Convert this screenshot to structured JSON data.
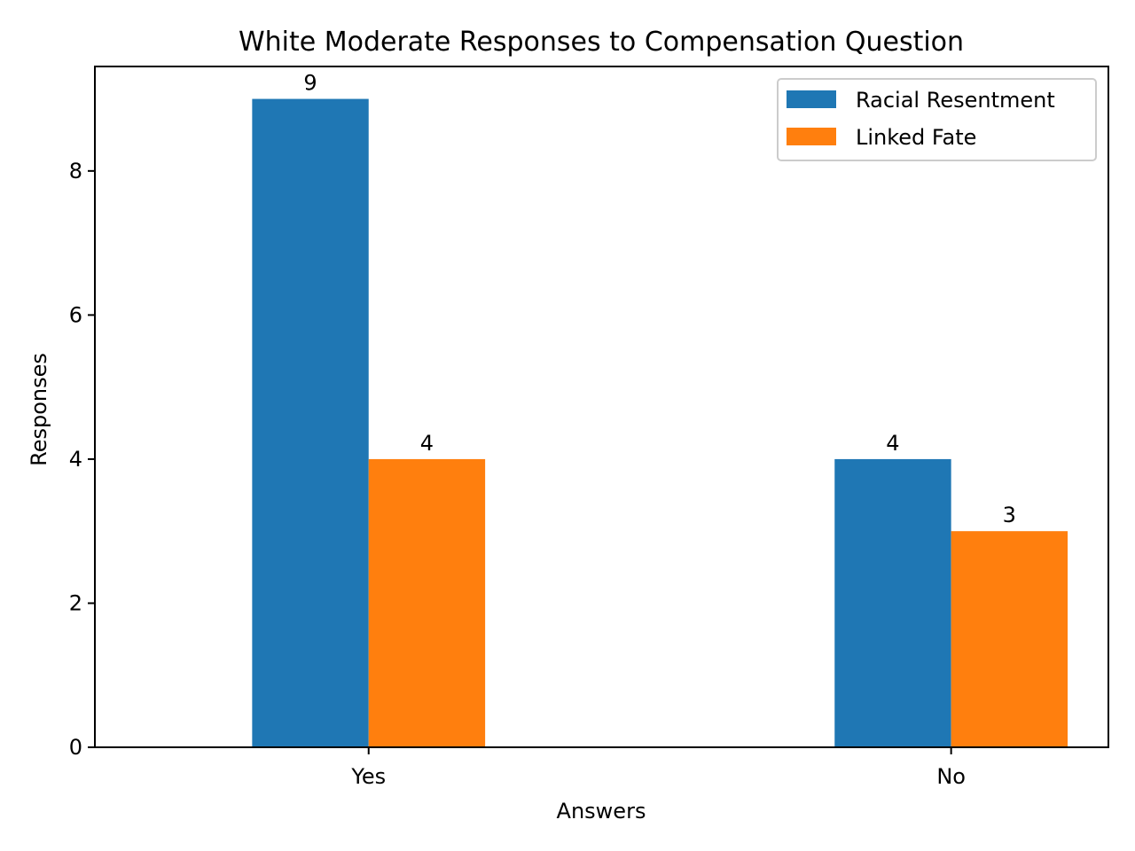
{
  "chart_data": {
    "type": "bar",
    "title": "White Moderate Responses to Compensation Question",
    "xlabel": "Answers",
    "ylabel": "Responses",
    "categories": [
      "Yes",
      "No"
    ],
    "series": [
      {
        "name": "Racial Resentment",
        "color": "#1f77b4",
        "values": [
          9,
          4
        ]
      },
      {
        "name": "Linked Fate",
        "color": "#ff7f0e",
        "values": [
          4,
          3
        ]
      }
    ],
    "ylim": [
      0,
      9.45
    ],
    "yticks": [
      0,
      2,
      4,
      6,
      8
    ],
    "grid": false,
    "legend": "top-right",
    "data_labels": true
  }
}
